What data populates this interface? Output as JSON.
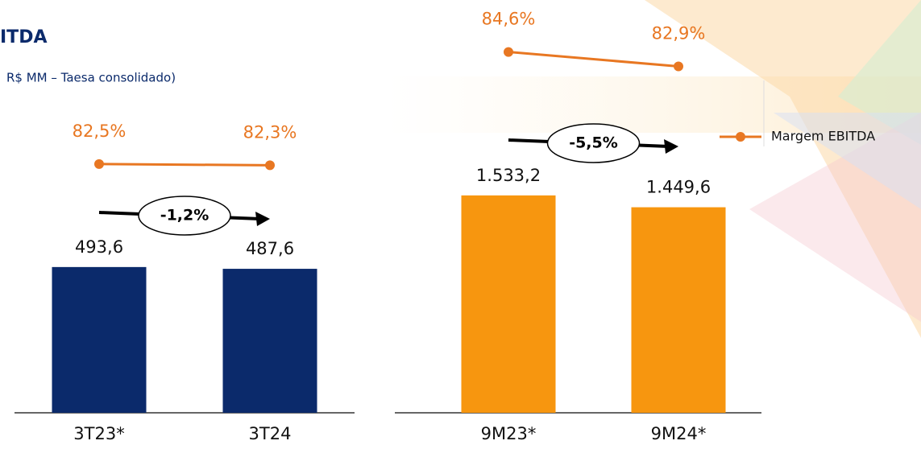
{
  "chart_data": [
    {
      "type": "bar",
      "title": "ITDA",
      "subtitle": "R$ MM – Taesa consolidado)",
      "categories": [
        "3T23*",
        "3T24"
      ],
      "values": [
        493.6,
        487.6
      ],
      "value_labels": [
        "493,6",
        "487,6"
      ],
      "color": "#0b2a6b",
      "ylim": [
        0,
        1090
      ],
      "line": {
        "color": "#e87722",
        "values": [
          82.5,
          82.3
        ],
        "value_labels": [
          "82,5%",
          "82,3%"
        ],
        "axis": "y2"
      },
      "y2lim": [
        40,
        95
      ],
      "change": "-1,2%"
    },
    {
      "type": "bar",
      "categories": [
        "9M23*",
        "9M24*"
      ],
      "values": [
        1533.2,
        1449.6
      ],
      "value_labels": [
        "1.533,2",
        "1.449,6"
      ],
      "color": "#f7960f",
      "ylim": [
        0,
        2270
      ],
      "line": {
        "name": "Margem EBITDA",
        "color": "#e87722",
        "values": [
          84.6,
          82.9
        ],
        "value_labels": [
          "84,6%",
          "82,9%"
        ],
        "axis": "y2"
      },
      "y2lim": [
        42,
        80
      ],
      "change": "-5,5%",
      "legend": "right"
    }
  ]
}
